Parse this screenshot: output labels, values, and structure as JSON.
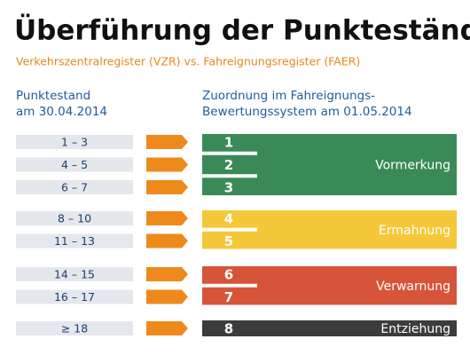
{
  "header": {
    "title": "Überführung der Punktestände",
    "subtitle": "Verkehrszentralregister (VZR) vs. Fahreignungsregister (FAER)"
  },
  "left_heading": [
    "Punktestand",
    "am 30.04.2014"
  ],
  "right_heading": [
    "Zuordnung im Fahreignungs-",
    "Bewertungssystem am 01.05.2014"
  ],
  "groups": [
    {
      "label": "Vormerkung",
      "color": "#3a8a57",
      "rows": [
        {
          "range": "1 – 3",
          "level": "1"
        },
        {
          "range": "4 – 5",
          "level": "2"
        },
        {
          "range": "6 – 7",
          "level": "3"
        }
      ]
    },
    {
      "label": "Ermahnung",
      "color": "#f5c83a",
      "rows": [
        {
          "range": "8 – 10",
          "level": "4"
        },
        {
          "range": "11 – 13",
          "level": "5"
        }
      ]
    },
    {
      "label": "Verwarnung",
      "color": "#d6543a",
      "rows": [
        {
          "range": "14 – 15",
          "level": "6"
        },
        {
          "range": "16 – 17",
          "level": "7"
        }
      ]
    },
    {
      "label": "Entziehung",
      "color": "#3c3c3c",
      "rows": [
        {
          "range": "≥ 18",
          "level": "8"
        }
      ]
    }
  ]
}
